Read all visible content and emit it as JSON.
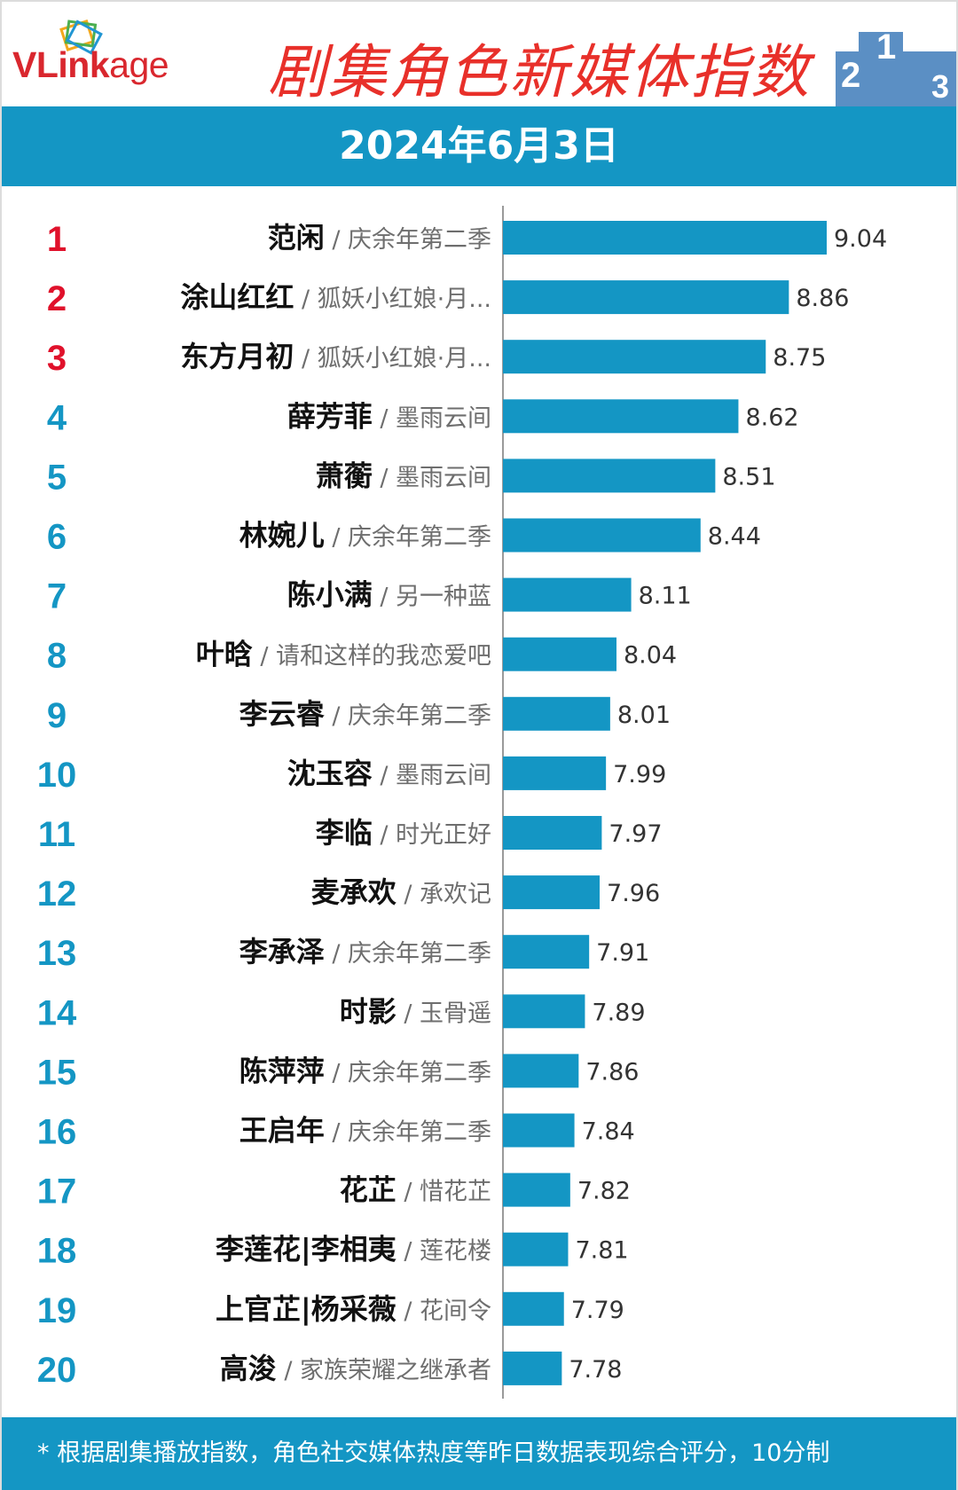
{
  "header": {
    "logo_text_a": "VL",
    "logo_text_b": "ink",
    "logo_text_c": "age",
    "title": "剧集角色新媒体指数",
    "podium_numbers": [
      "2",
      "1",
      "3"
    ]
  },
  "date_label": "2024年6月3日",
  "footer_note": "* 根据剧集播放指数，角色社交媒体热度等昨日数据表现综合评分，10分制",
  "colors": {
    "bar": "#1496c4",
    "band": "#1496c4",
    "rank_top3": "#e0112b",
    "rank_other": "#1496c4",
    "title": "#e8302a"
  },
  "chart_data": {
    "type": "bar",
    "orientation": "horizontal",
    "title": "剧集角色新媒体指数",
    "xlabel": "",
    "ylabel": "",
    "xlim": [
      7.5,
      9.2
    ],
    "grid": false,
    "legend": "none",
    "separator": " / ",
    "ranks": [
      "1",
      "2",
      "3",
      "4",
      "5",
      "6",
      "7",
      "8",
      "9",
      "10",
      "11",
      "12",
      "13",
      "14",
      "15",
      "16",
      "17",
      "18",
      "19",
      "20"
    ],
    "characters": [
      "范闲",
      "涂山红红",
      "东方月初",
      "薛芳菲",
      "萧蘅",
      "林婉儿",
      "陈小满",
      "叶晗",
      "李云睿",
      "沈玉容",
      "李临",
      "麦承欢",
      "李承泽",
      "时影",
      "陈萍萍",
      "王启年",
      "花芷",
      "李莲花|李相夷",
      "上官芷|杨采薇",
      "高浚"
    ],
    "dramas": [
      "庆余年第二季",
      "狐妖小红娘·月...",
      "狐妖小红娘·月...",
      "墨雨云间",
      "墨雨云间",
      "庆余年第二季",
      "另一种蓝",
      "请和这样的我恋爱吧",
      "庆余年第二季",
      "墨雨云间",
      "时光正好",
      "承欢记",
      "庆余年第二季",
      "玉骨遥",
      "庆余年第二季",
      "庆余年第二季",
      "惜花芷",
      "莲花楼",
      "花间令",
      "家族荣耀之继承者"
    ],
    "values": [
      9.04,
      8.86,
      8.75,
      8.62,
      8.51,
      8.44,
      8.11,
      8.04,
      8.01,
      7.99,
      7.97,
      7.96,
      7.91,
      7.89,
      7.86,
      7.84,
      7.82,
      7.81,
      7.79,
      7.78
    ],
    "value_labels": [
      "9.04",
      "8.86",
      "8.75",
      "8.62",
      "8.51",
      "8.44",
      "8.11",
      "8.04",
      "8.01",
      "7.99",
      "7.97",
      "7.96",
      "7.91",
      "7.89",
      "7.86",
      "7.84",
      "7.82",
      "7.81",
      "7.79",
      "7.78"
    ]
  }
}
